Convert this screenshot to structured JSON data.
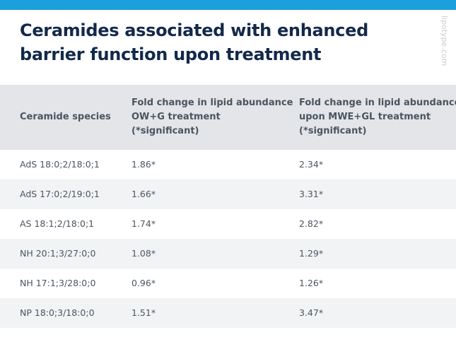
{
  "header": {
    "title": [
      "Ceramides associated with enhanced",
      "barrier function upon treatment"
    ],
    "watermark": "lipotype.com"
  },
  "table": {
    "columns": [
      [
        "Ceramide species"
      ],
      [
        "Fold change in lipid abundance",
        "OW+G treatment",
        "(*significant)"
      ],
      [
        "Fold change in lipid abundance",
        "upon MWE+GL treatment",
        "(*significant)"
      ]
    ],
    "rows": [
      [
        "AdS 18:0;2/18:0;1",
        "1.86*",
        "2.34*"
      ],
      [
        "AdS 17:0;2/19:0;1",
        "1.66*",
        "3.31*"
      ],
      [
        "AS 18:1;2/18:0;1",
        "1.74*",
        "2.82*"
      ],
      [
        "NH 20:1;3/27:0;0",
        "1.08*",
        "1.29*"
      ],
      [
        "NH 17:1;3/28:0;0",
        "0.96*",
        "1.26*"
      ],
      [
        "NP 18:0;3/18:0;0",
        "1.51*",
        "3.47*"
      ]
    ]
  }
}
